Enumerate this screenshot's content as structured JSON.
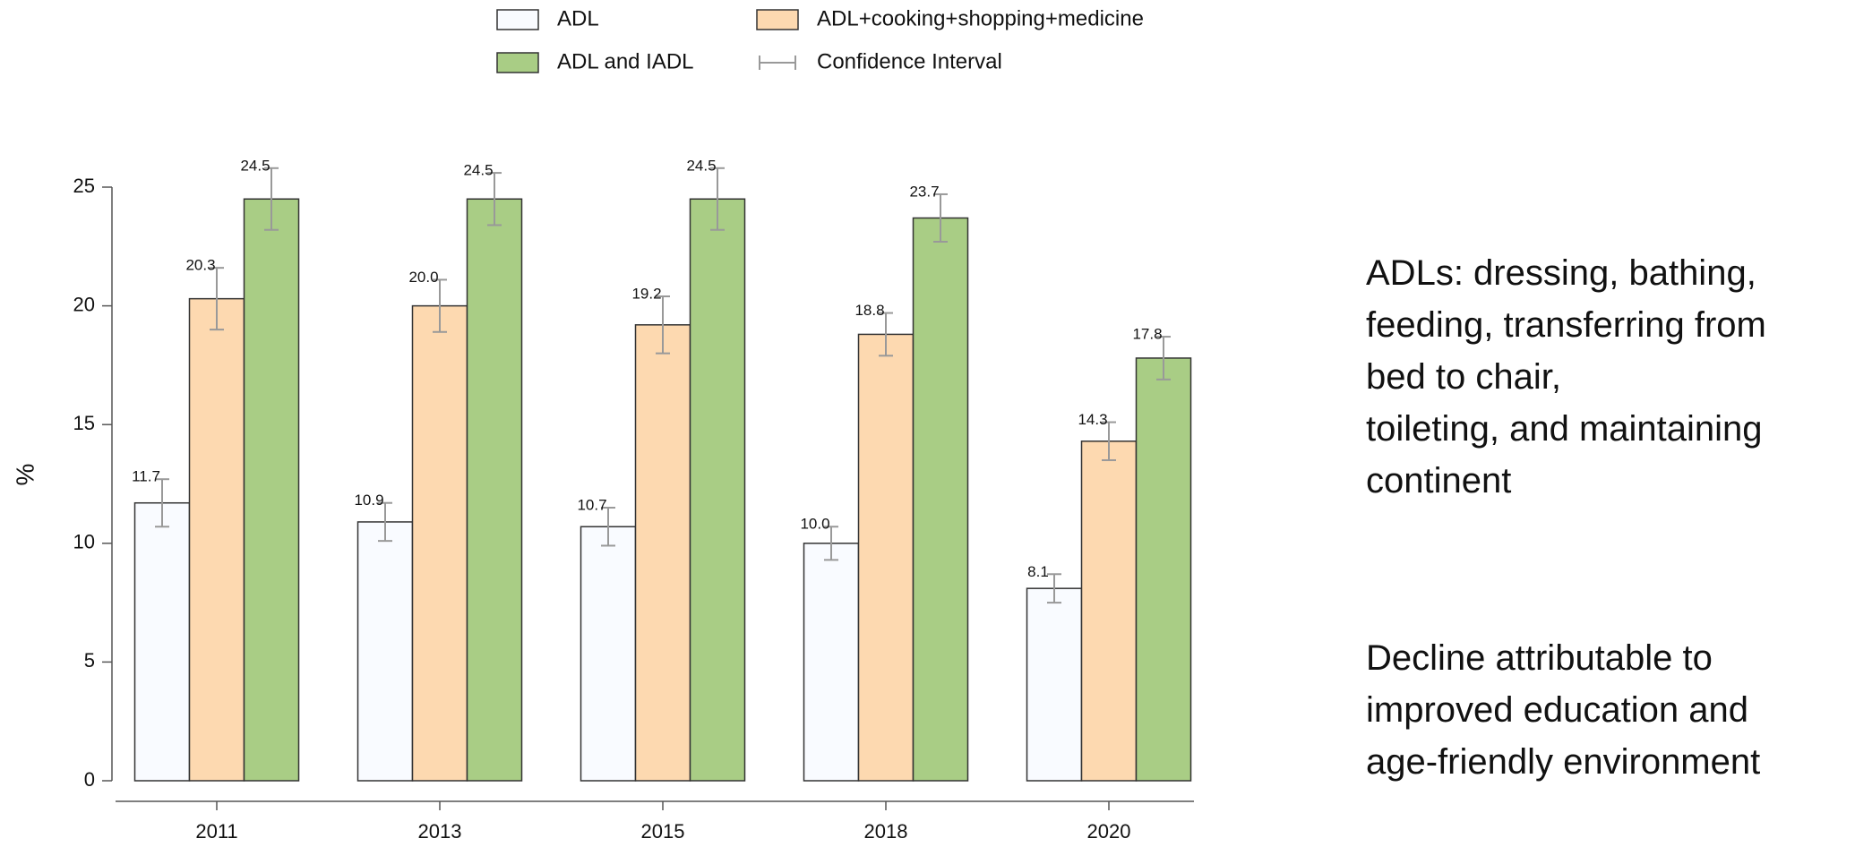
{
  "chart_data": {
    "type": "bar",
    "ylabel": "%",
    "categories": [
      "2011",
      "2013",
      "2015",
      "2018",
      "2020"
    ],
    "series": [
      {
        "name": "ADL",
        "color": "#f9fbff",
        "values": [
          11.7,
          10.9,
          10.7,
          10.0,
          8.1
        ],
        "value_labels": [
          "11.7",
          "10.9",
          "10.7",
          "10.0",
          "8.1"
        ],
        "errors": [
          1.0,
          0.8,
          0.8,
          0.7,
          0.6
        ]
      },
      {
        "name": "ADL+cooking+shopping+medicine",
        "color": "#fdd9b0",
        "values": [
          20.3,
          20.0,
          19.2,
          18.8,
          14.3
        ],
        "value_labels": [
          "20.3",
          "20.0",
          "19.2",
          "18.8",
          "14.3"
        ],
        "errors": [
          1.3,
          1.1,
          1.2,
          0.9,
          0.8
        ]
      },
      {
        "name": "ADL and IADL",
        "color": "#a9cd85",
        "values": [
          24.5,
          24.5,
          24.5,
          23.7,
          17.8
        ],
        "value_labels": [
          "24.5",
          "24.5",
          "24.5",
          "23.7",
          "17.8"
        ],
        "errors": [
          1.3,
          1.1,
          1.3,
          1.0,
          0.9
        ]
      }
    ],
    "error_legend": "Confidence Interval",
    "error_color": "#999999",
    "ylim": [
      0,
      25
    ],
    "yticks": [
      0,
      5,
      10,
      15,
      20,
      25
    ]
  },
  "notes": [
    [
      "ADLs: dressing, bathing,",
      "feeding, transferring from",
      "bed to chair,",
      "toileting, and maintaining",
      "continent"
    ],
    [
      "Decline attributable to",
      "improved education and",
      "age-friendly environment"
    ]
  ]
}
